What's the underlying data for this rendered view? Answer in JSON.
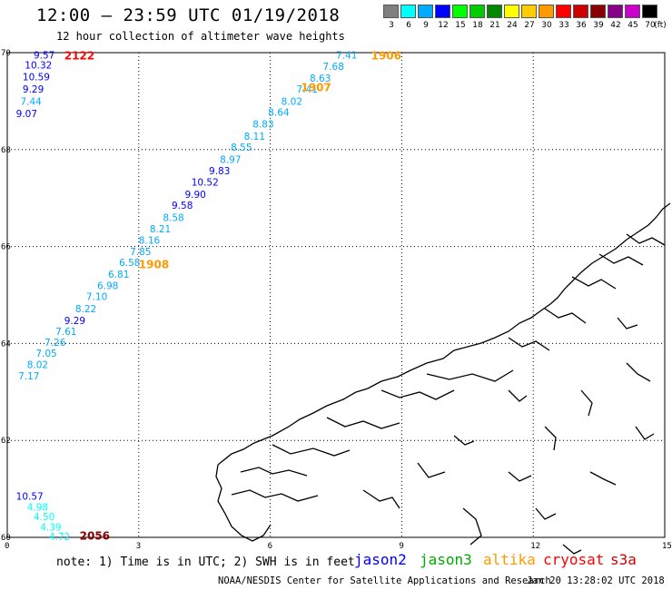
{
  "header": {
    "title": "12:00 – 23:59 UTC 01/19/2018",
    "subtitle": "12 hour collection of altimeter wave heights"
  },
  "legend": {
    "unit_label": "(ft)",
    "bins": [
      {
        "label": "3",
        "color": "#808080"
      },
      {
        "label": "6",
        "color": "#00ffff"
      },
      {
        "label": "9",
        "color": "#00aaff"
      },
      {
        "label": "12",
        "color": "#0000ff"
      },
      {
        "label": "15",
        "color": "#00ff00"
      },
      {
        "label": "18",
        "color": "#00cc00"
      },
      {
        "label": "21",
        "color": "#008800"
      },
      {
        "label": "24",
        "color": "#ffff00"
      },
      {
        "label": "27",
        "color": "#ffcc00"
      },
      {
        "label": "30",
        "color": "#ff9900"
      },
      {
        "label": "33",
        "color": "#ff0000"
      },
      {
        "label": "36",
        "color": "#cc0000"
      },
      {
        "label": "39",
        "color": "#880000"
      },
      {
        "label": "42",
        "color": "#880088"
      },
      {
        "label": "45",
        "color": "#cc00cc"
      },
      {
        "label": "70",
        "color": "#000000"
      }
    ]
  },
  "map": {
    "lat_range": [
      60,
      70
    ],
    "lon_range": [
      0,
      15
    ],
    "lat_labels": [
      "60",
      "62",
      "64",
      "66",
      "68",
      "70"
    ],
    "lon_labels": [
      "0",
      "3",
      "6",
      "9",
      "12",
      "15"
    ],
    "pass_labels": [
      {
        "text": "2122",
        "lon": 1.3,
        "lat": 69.95,
        "color": "#ff0000"
      },
      {
        "text": "1906",
        "lon": 8.3,
        "lat": 69.95,
        "color": "#ff9900"
      },
      {
        "text": "1907",
        "lon": 6.7,
        "lat": 69.3,
        "color": "#ff9900"
      },
      {
        "text": "1908",
        "lon": 3.0,
        "lat": 65.65,
        "color": "#ff9900"
      },
      {
        "text": "2056",
        "lon": 1.65,
        "lat": 60.05,
        "color": "#880000"
      }
    ],
    "wave_heights": [
      {
        "v": "9.57",
        "lon": 0.6,
        "lat": 69.95,
        "c": "#0000ff"
      },
      {
        "v": "10.32",
        "lon": 0.4,
        "lat": 69.75,
        "c": "#0000ff"
      },
      {
        "v": "10.59",
        "lon": 0.35,
        "lat": 69.5,
        "c": "#0000ff"
      },
      {
        "v": "9.29",
        "lon": 0.35,
        "lat": 69.25,
        "c": "#0000ff"
      },
      {
        "v": "7.44",
        "lon": 0.3,
        "lat": 69.0,
        "c": "#00aaff"
      },
      {
        "v": "9.07",
        "lon": 0.2,
        "lat": 68.75,
        "c": "#0000ff"
      },
      {
        "v": "7.41",
        "lon": 7.5,
        "lat": 69.95,
        "c": "#00aaff"
      },
      {
        "v": "7.68",
        "lon": 7.2,
        "lat": 69.72,
        "c": "#00aaff"
      },
      {
        "v": "8.63",
        "lon": 6.9,
        "lat": 69.48,
        "c": "#00aaff"
      },
      {
        "v": "7.41",
        "lon": 6.6,
        "lat": 69.25,
        "c": "#00aaff"
      },
      {
        "v": "8.02",
        "lon": 6.25,
        "lat": 69.0,
        "c": "#00aaff"
      },
      {
        "v": "8.64",
        "lon": 5.95,
        "lat": 68.77,
        "c": "#00aaff"
      },
      {
        "v": "8.83",
        "lon": 5.6,
        "lat": 68.53,
        "c": "#00aaff"
      },
      {
        "v": "8.11",
        "lon": 5.4,
        "lat": 68.28,
        "c": "#00aaff"
      },
      {
        "v": "8.55",
        "lon": 5.1,
        "lat": 68.05,
        "c": "#00aaff"
      },
      {
        "v": "8.97",
        "lon": 4.85,
        "lat": 67.8,
        "c": "#00aaff"
      },
      {
        "v": "9.83",
        "lon": 4.6,
        "lat": 67.57,
        "c": "#0000ff"
      },
      {
        "v": "10.52",
        "lon": 4.2,
        "lat": 67.33,
        "c": "#0000ff"
      },
      {
        "v": "9.90",
        "lon": 4.05,
        "lat": 67.08,
        "c": "#0000ff"
      },
      {
        "v": "9.58",
        "lon": 3.75,
        "lat": 66.85,
        "c": "#0000ff"
      },
      {
        "v": "8.58",
        "lon": 3.55,
        "lat": 66.6,
        "c": "#00aaff"
      },
      {
        "v": "8.21",
        "lon": 3.25,
        "lat": 66.37,
        "c": "#00aaff"
      },
      {
        "v": "8.16",
        "lon": 3.0,
        "lat": 66.13,
        "c": "#00aaff"
      },
      {
        "v": "7.85",
        "lon": 2.8,
        "lat": 65.9,
        "c": "#00aaff"
      },
      {
        "v": "6.58",
        "lon": 2.55,
        "lat": 65.67,
        "c": "#00aaff"
      },
      {
        "v": "6.81",
        "lon": 2.3,
        "lat": 65.43,
        "c": "#00aaff"
      },
      {
        "v": "6.98",
        "lon": 2.05,
        "lat": 65.2,
        "c": "#00aaff"
      },
      {
        "v": "7.10",
        "lon": 1.8,
        "lat": 64.97,
        "c": "#00aaff"
      },
      {
        "v": "8.22",
        "lon": 1.55,
        "lat": 64.72,
        "c": "#00aaff"
      },
      {
        "v": "9.29",
        "lon": 1.3,
        "lat": 64.48,
        "c": "#0000ff"
      },
      {
        "v": "7.61",
        "lon": 1.1,
        "lat": 64.25,
        "c": "#00aaff"
      },
      {
        "v": "7.26",
        "lon": 0.85,
        "lat": 64.03,
        "c": "#00aaff"
      },
      {
        "v": "7.05",
        "lon": 0.65,
        "lat": 63.8,
        "c": "#00aaff"
      },
      {
        "v": "8.02",
        "lon": 0.45,
        "lat": 63.57,
        "c": "#00aaff"
      },
      {
        "v": "7.17",
        "lon": 0.25,
        "lat": 63.33,
        "c": "#00aaff"
      },
      {
        "v": "10.57",
        "lon": 0.2,
        "lat": 60.85,
        "c": "#0000ff"
      },
      {
        "v": "4.98",
        "lon": 0.45,
        "lat": 60.63,
        "c": "#00ffff"
      },
      {
        "v": "4.50",
        "lon": 0.6,
        "lat": 60.43,
        "c": "#00ffff"
      },
      {
        "v": "4.39",
        "lon": 0.75,
        "lat": 60.22,
        "c": "#00ffff"
      },
      {
        "v": "4.72",
        "lon": 0.95,
        "lat": 60.02,
        "c": "#00ffff"
      }
    ]
  },
  "footer": {
    "note": "note: 1) Time is in UTC; 2) SWH is in feet",
    "satellites": [
      {
        "name": "jason2",
        "color": "#0000ff"
      },
      {
        "name": "jason3",
        "color": "#00aa00"
      },
      {
        "name": "altika",
        "color": "#ff9900"
      },
      {
        "name": "cryosat",
        "color": "#ff0000"
      },
      {
        "name": "s3a",
        "color": "#cc0000"
      }
    ],
    "credit": "NOAA/NESDIS Center for Satellite Applications and Research",
    "timestamp": "Jan 20 13:28:02 UTC 2018"
  }
}
